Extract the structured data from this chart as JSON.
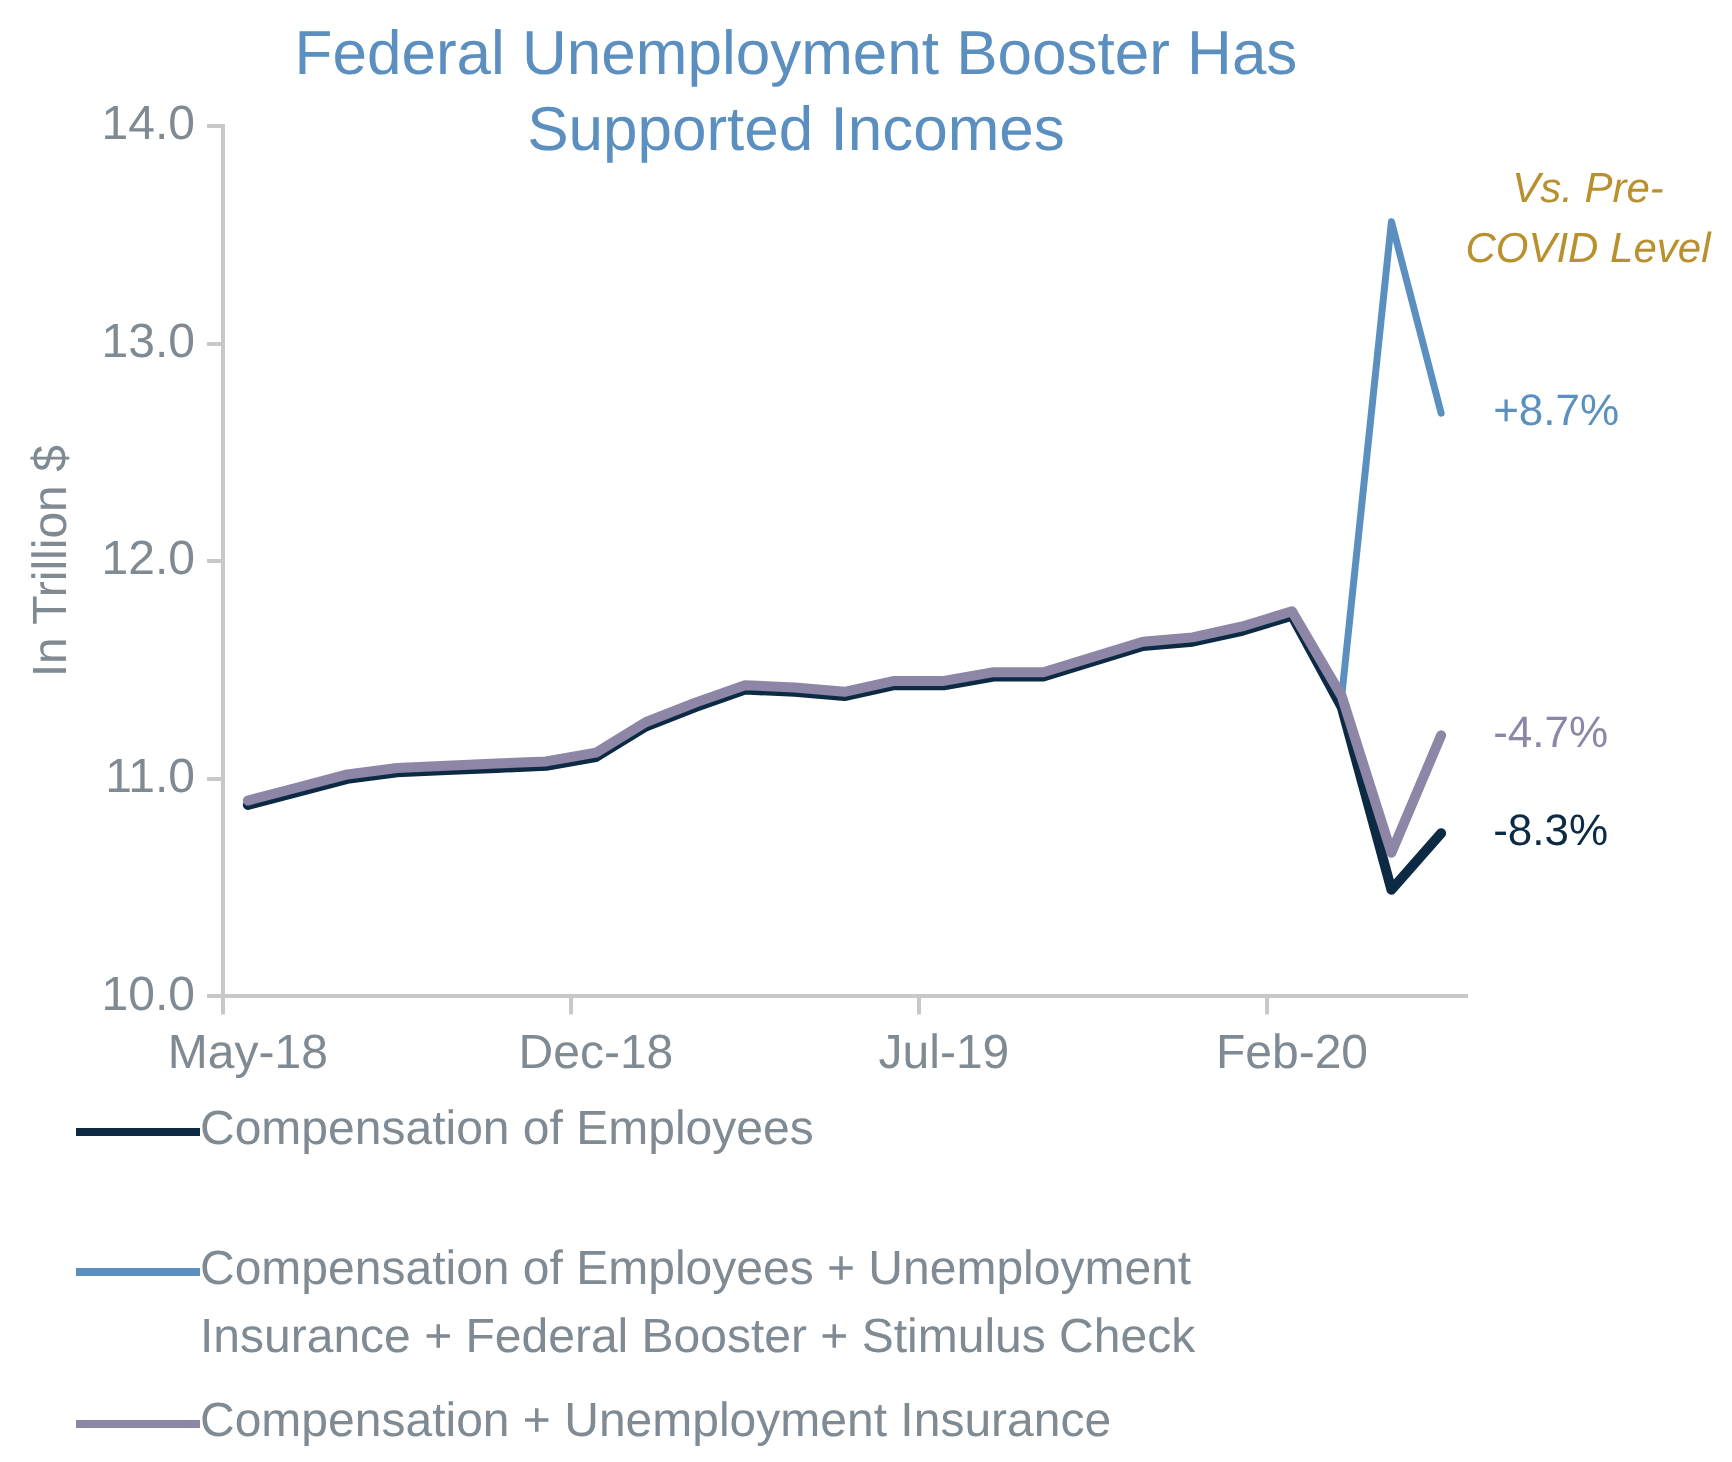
{
  "chart_data": {
    "type": "line",
    "title": "Federal Unemployment Booster Has Supported Incomes",
    "ylabel": "In Trillion $",
    "categories": [
      "May-18",
      null,
      null,
      null,
      null,
      null,
      null,
      "Dec-18",
      null,
      null,
      null,
      null,
      null,
      null,
      "Jul-19",
      null,
      null,
      null,
      null,
      null,
      null,
      "Feb-20",
      null,
      null,
      null
    ],
    "series": [
      {
        "name": "Compensation of Employees",
        "color": "#0d2a45",
        "values": [
          10.88,
          10.94,
          11.0,
          11.03,
          11.04,
          11.05,
          11.06,
          11.1,
          11.24,
          11.33,
          11.41,
          11.4,
          11.38,
          11.43,
          11.43,
          11.47,
          11.47,
          11.54,
          11.61,
          11.63,
          11.68,
          11.75,
          11.33,
          10.49,
          10.75
        ]
      },
      {
        "name": "Compensation of Employees + Unemployment Insurance + Federal Booster + Stimulus Check",
        "color": "#5a8fbf",
        "values": [
          null,
          null,
          null,
          null,
          null,
          null,
          null,
          null,
          null,
          null,
          null,
          null,
          null,
          null,
          null,
          null,
          null,
          null,
          null,
          null,
          null,
          null,
          11.38,
          13.56,
          12.68
        ]
      },
      {
        "name": "Compensation + Unemployment Insurance",
        "color": "#8e86a6",
        "values": [
          10.9,
          10.96,
          11.02,
          11.05,
          11.06,
          11.07,
          11.08,
          11.12,
          11.26,
          11.35,
          11.43,
          11.42,
          11.4,
          11.45,
          11.45,
          11.49,
          11.49,
          11.56,
          11.63,
          11.65,
          11.7,
          11.77,
          11.38,
          10.66,
          11.2
        ]
      }
    ],
    "ylim": [
      10,
      14
    ],
    "yticks": [
      {
        "value": 10,
        "label": "10.0"
      },
      {
        "value": 11,
        "label": "11.0"
      },
      {
        "value": 12,
        "label": "12.0"
      },
      {
        "value": 13,
        "label": "13.0"
      },
      {
        "value": 14,
        "label": "14.0"
      }
    ],
    "grid": false,
    "legend": "bottom",
    "marker": "none",
    "line_style": "solid",
    "annotations": [
      "Vs. Pre-COVID Level",
      "+8.7%",
      "-4.7%",
      "-8.3%"
    ]
  }
}
